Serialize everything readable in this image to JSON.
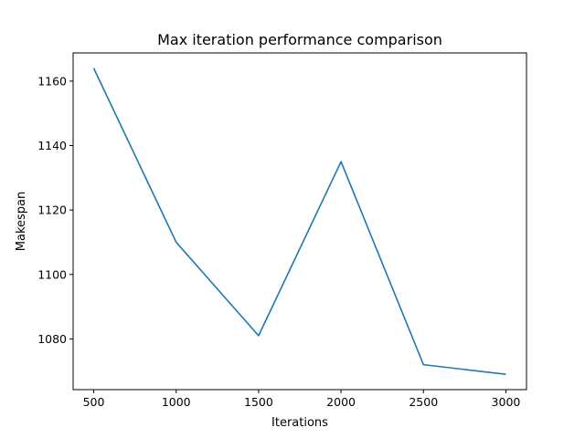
{
  "chart_data": {
    "type": "line",
    "title": "Max iteration performance comparison",
    "xlabel": "Iterations",
    "ylabel": "Makespan",
    "x": [
      500,
      1000,
      1500,
      2000,
      2500,
      3000
    ],
    "series": [
      {
        "values": [
          1164,
          1110,
          1081,
          1135,
          1072,
          1069
        ],
        "color": "#1f77b4"
      }
    ],
    "xlim": [
      375,
      3125
    ],
    "ylim": [
      1064.25,
      1168.75
    ],
    "xticks": [
      500,
      1000,
      1500,
      2000,
      2500,
      3000
    ],
    "yticks": [
      1080,
      1100,
      1120,
      1140,
      1160
    ],
    "grid": false
  }
}
